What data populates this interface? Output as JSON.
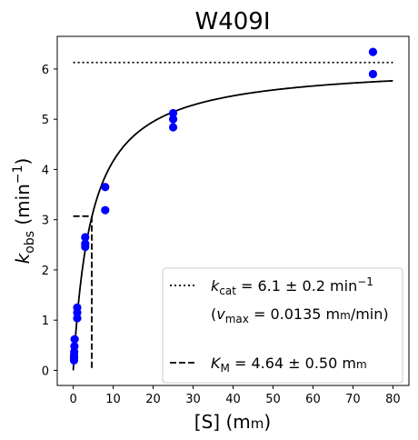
{
  "chart_data": {
    "type": "scatter",
    "title": "W409I",
    "xlabel": {
      "base": "[S] (m",
      "sc": "m",
      "tail": ")"
    },
    "ylabel": {
      "k": "k",
      "sub": "obs",
      "mid": " (min",
      "sup": "−1",
      "end": ")"
    },
    "xlim": [
      -4,
      84
    ],
    "ylim": [
      -0.3,
      6.65
    ],
    "xticks": [
      0,
      10,
      20,
      30,
      40,
      50,
      60,
      70,
      80
    ],
    "yticks": [
      0,
      1,
      2,
      3,
      4,
      5,
      6
    ],
    "points_color": "#0000ff",
    "points": [
      {
        "x": 0.2,
        "y": 0.2
      },
      {
        "x": 0.2,
        "y": 0.25
      },
      {
        "x": 0.2,
        "y": 0.3
      },
      {
        "x": 0.25,
        "y": 0.37
      },
      {
        "x": 0.3,
        "y": 0.48
      },
      {
        "x": 0.35,
        "y": 0.62
      },
      {
        "x": 1.0,
        "y": 1.04
      },
      {
        "x": 1.0,
        "y": 1.15
      },
      {
        "x": 1.0,
        "y": 1.25
      },
      {
        "x": 3.0,
        "y": 2.46
      },
      {
        "x": 3.0,
        "y": 2.52
      },
      {
        "x": 3.0,
        "y": 2.65
      },
      {
        "x": 8.0,
        "y": 3.19
      },
      {
        "x": 8.0,
        "y": 3.65
      },
      {
        "x": 25.0,
        "y": 4.84
      },
      {
        "x": 25.0,
        "y": 5.0
      },
      {
        "x": 25.0,
        "y": 5.12
      },
      {
        "x": 75.0,
        "y": 5.9
      },
      {
        "x": 75.0,
        "y": 6.34
      }
    ],
    "fit": {
      "kcat": 6.1,
      "Km": 4.64,
      "x_range": [
        0,
        80
      ]
    },
    "kcat_line": {
      "y": 6.13,
      "x_range": [
        0,
        80
      ],
      "style": "dotted"
    },
    "km_line": {
      "x": 4.64,
      "y": 3.07,
      "x_start": 0,
      "style": "dashed"
    },
    "legend": {
      "position": "lower-right",
      "row1": {
        "k": "k",
        "sub": "cat",
        "text": " = 6.1 ± 0.2 min",
        "sup": "−1"
      },
      "row2": {
        "pre": "(",
        "v": "v",
        "sub": "max",
        "text": " = 0.0135 m",
        "sc": "m",
        "tail": "/min)"
      },
      "row3": {
        "k": "K",
        "sub": "M",
        "text": " = 4.64 ± 0.50 m",
        "sc": "m"
      }
    }
  }
}
